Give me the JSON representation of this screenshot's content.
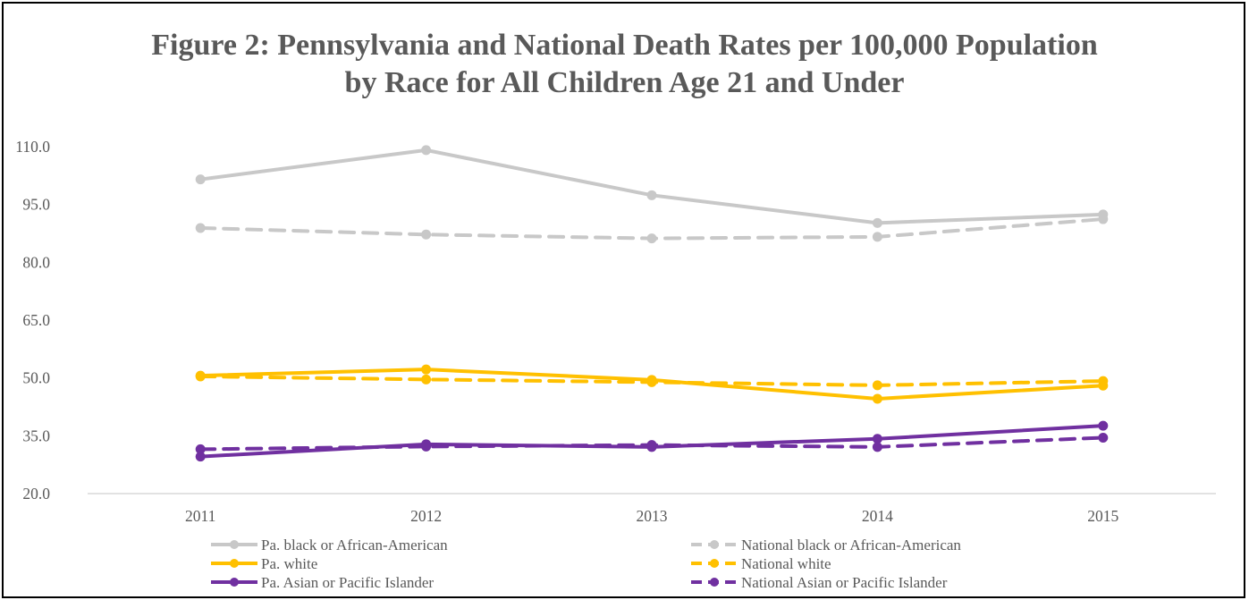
{
  "chart_data": {
    "type": "line",
    "title_line1": "Figure 2:  Pennsylvania and National Death Rates per 100,000 Population",
    "title_line2": "by Race for All Children Age 21 and Under",
    "categories": [
      "2011",
      "2012",
      "2013",
      "2014",
      "2015"
    ],
    "ylim": [
      20.0,
      110.0
    ],
    "yticks": [
      "20.0",
      "35.0",
      "50.0",
      "65.0",
      "80.0",
      "95.0",
      "110.0"
    ],
    "ytick_values": [
      20,
      35,
      50,
      65,
      80,
      95,
      110
    ],
    "grid": false,
    "legend_position": "bottom",
    "series": [
      {
        "name": "Pa. black or African-American",
        "values": [
          101.5,
          109.1,
          97.4,
          90.2,
          92.4
        ],
        "color": "#c8c8c8",
        "style": "solid"
      },
      {
        "name": "National black or African-American",
        "values": [
          88.9,
          87.2,
          86.2,
          86.6,
          91.2
        ],
        "color": "#c8c8c8",
        "style": "dashed"
      },
      {
        "name": "Pa. white",
        "values": [
          50.6,
          52.2,
          49.5,
          44.6,
          48.0
        ],
        "color": "#ffc000",
        "style": "solid"
      },
      {
        "name": "National white",
        "values": [
          50.4,
          49.6,
          48.9,
          48.1,
          49.2
        ],
        "color": "#ffc000",
        "style": "dashed"
      },
      {
        "name": "Pa. Asian or Pacific Islander",
        "values": [
          29.6,
          32.8,
          32.1,
          34.2,
          37.6
        ],
        "color": "#7030a0",
        "style": "solid"
      },
      {
        "name": "National Asian or Pacific Islander",
        "values": [
          31.5,
          32.2,
          32.6,
          32.1,
          34.5
        ],
        "color": "#7030a0",
        "style": "dashed"
      }
    ]
  }
}
